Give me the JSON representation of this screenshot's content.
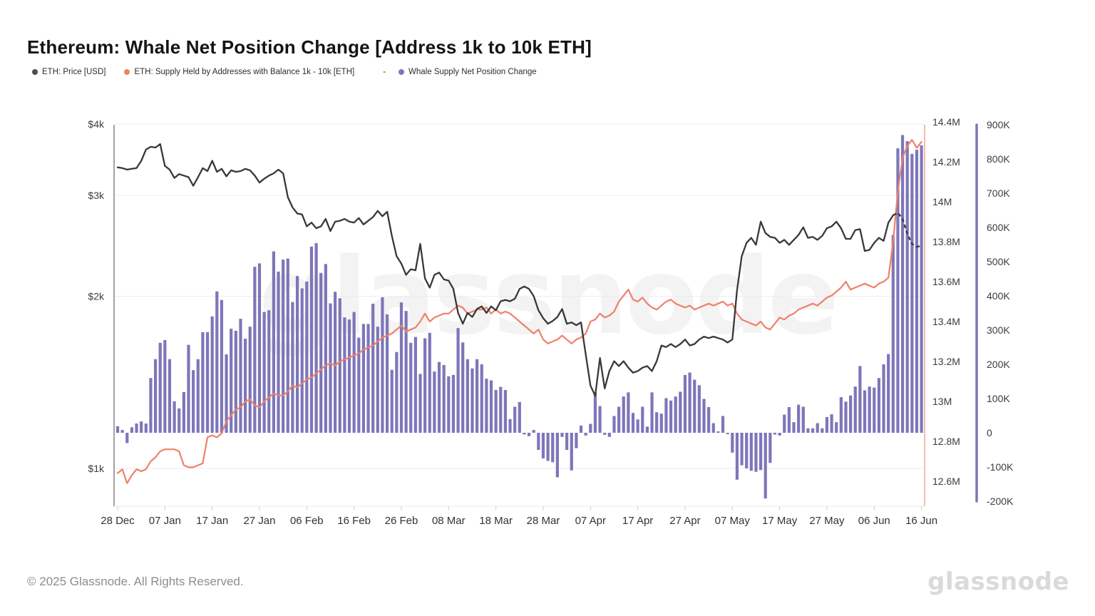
{
  "page": {
    "title": "Ethereum: Whale Net Position Change [Address 1k to 10k ETH]",
    "footer_copyright": "© 2025 Glassnode. All Rights Reserved.",
    "brand_watermark": "glassnode",
    "chart_watermark": "glassnode"
  },
  "legend": {
    "separator": "-",
    "items": [
      {
        "label": "ETH: Price [USD]",
        "color": "#4d4d4d"
      },
      {
        "label": "ETH: Supply Held by Addresses with Balance 1k - 10k [ETH]",
        "color": "#f08165"
      },
      {
        "label": "Whale Supply Net Position Change",
        "color": "#7d76b9"
      }
    ]
  },
  "chart_data": {
    "type": "combo",
    "title": "Ethereum: Whale Net Position Change [Address 1k to 10k ETH]",
    "x_start": "28 Dec",
    "x_end": "16 Jun",
    "x_tick_labels": [
      "28 Dec",
      "07 Jan",
      "17 Jan",
      "27 Jan",
      "06 Feb",
      "16 Feb",
      "26 Feb",
      "08 Mar",
      "18 Mar",
      "28 Mar",
      "07 Apr",
      "17 Apr",
      "27 Apr",
      "07 May",
      "17 May",
      "27 May",
      "06 Jun",
      "16 Jun"
    ],
    "x_tick_every_days": 10,
    "grid": "horizontal-faint",
    "legend_position": "top-left",
    "axes": {
      "price": {
        "side": "left",
        "scale": "log",
        "tick_labels": [
          "$1k",
          "$2k",
          "$3k",
          "$4k"
        ],
        "tick_values": [
          1000,
          2000,
          3000,
          4000
        ]
      },
      "supply": {
        "side": "right",
        "scale": "linear",
        "unit": "M",
        "tick_labels": [
          "12.6M",
          "12.8M",
          "13M",
          "13.2M",
          "13.4M",
          "13.6M",
          "13.8M",
          "14M",
          "14.2M",
          "14.4M"
        ],
        "tick_values": [
          12.6,
          12.8,
          13.0,
          13.2,
          13.4,
          13.6,
          13.8,
          14.0,
          14.2,
          14.4
        ]
      },
      "npc": {
        "side": "far-right",
        "scale": "linear",
        "unit": "K",
        "tick_labels": [
          "-200K",
          "-100K",
          "0",
          "100K",
          "200K",
          "300K",
          "400K",
          "500K",
          "600K",
          "700K",
          "800K",
          "900K"
        ],
        "tick_values": [
          -200,
          -100,
          0,
          100,
          200,
          300,
          400,
          500,
          600,
          700,
          800,
          900
        ]
      }
    },
    "series": [
      {
        "name": "ETH: Price [USD]",
        "type": "line",
        "axis": "price",
        "color": "#383838",
        "dashed_from_index": 164,
        "values": [
          3360,
          3350,
          3330,
          3340,
          3350,
          3450,
          3610,
          3650,
          3640,
          3690,
          3380,
          3330,
          3220,
          3270,
          3250,
          3230,
          3120,
          3230,
          3350,
          3310,
          3450,
          3300,
          3340,
          3240,
          3320,
          3300,
          3310,
          3340,
          3320,
          3250,
          3160,
          3210,
          3250,
          3280,
          3330,
          3280,
          2980,
          2860,
          2790,
          2780,
          2650,
          2690,
          2630,
          2650,
          2730,
          2600,
          2700,
          2710,
          2730,
          2700,
          2690,
          2740,
          2670,
          2710,
          2750,
          2820,
          2760,
          2810,
          2550,
          2350,
          2280,
          2180,
          2230,
          2220,
          2470,
          2150,
          2070,
          2180,
          2200,
          2140,
          2130,
          2060,
          1870,
          1790,
          1870,
          1840,
          1900,
          1920,
          1870,
          1920,
          1890,
          1960,
          1970,
          1960,
          1980,
          2060,
          2080,
          2060,
          2000,
          1890,
          1830,
          1790,
          1810,
          1840,
          1900,
          1790,
          1800,
          1780,
          1800,
          1580,
          1395,
          1340,
          1560,
          1380,
          1480,
          1540,
          1510,
          1540,
          1500,
          1470,
          1480,
          1500,
          1510,
          1480,
          1540,
          1640,
          1630,
          1650,
          1630,
          1650,
          1680,
          1640,
          1650,
          1680,
          1700,
          1690,
          1700,
          1690,
          1680,
          1660,
          1680,
          2050,
          2350,
          2480,
          2530,
          2460,
          2700,
          2580,
          2540,
          2530,
          2480,
          2510,
          2460,
          2510,
          2560,
          2640,
          2530,
          2540,
          2510,
          2550,
          2630,
          2650,
          2700,
          2630,
          2520,
          2520,
          2610,
          2620,
          2400,
          2410,
          2480,
          2530,
          2500,
          2690,
          2770,
          2800,
          2730,
          2570,
          2470,
          2440,
          2450
        ]
      },
      {
        "name": "ETH: Supply Held by Addresses with Balance 1k - 10k [ETH]",
        "type": "line",
        "axis": "supply",
        "color": "#ef8168",
        "values": [
          12.64,
          12.66,
          12.59,
          12.63,
          12.66,
          12.65,
          12.66,
          12.7,
          12.72,
          12.75,
          12.76,
          12.76,
          12.76,
          12.75,
          12.68,
          12.67,
          12.67,
          12.68,
          12.69,
          12.82,
          12.83,
          12.82,
          12.84,
          12.9,
          12.93,
          12.96,
          12.97,
          13.0,
          13.01,
          12.98,
          12.97,
          13.0,
          13.02,
          13.04,
          13.03,
          13.03,
          13.05,
          13.08,
          13.07,
          13.09,
          13.11,
          13.12,
          13.14,
          13.16,
          13.18,
          13.19,
          13.18,
          13.2,
          13.21,
          13.22,
          13.23,
          13.24,
          13.26,
          13.27,
          13.28,
          13.3,
          13.32,
          13.33,
          13.34,
          13.36,
          13.38,
          13.35,
          13.36,
          13.37,
          13.4,
          13.44,
          13.4,
          13.42,
          13.43,
          13.44,
          13.44,
          13.46,
          13.48,
          13.47,
          13.44,
          13.45,
          13.46,
          13.46,
          13.47,
          13.44,
          13.46,
          13.44,
          13.45,
          13.44,
          13.42,
          13.4,
          13.38,
          13.36,
          13.34,
          13.36,
          13.31,
          13.29,
          13.3,
          13.31,
          13.33,
          13.31,
          13.29,
          13.31,
          13.32,
          13.34,
          13.4,
          13.41,
          13.44,
          13.42,
          13.43,
          13.45,
          13.5,
          13.53,
          13.56,
          13.51,
          13.5,
          13.52,
          13.49,
          13.47,
          13.46,
          13.48,
          13.5,
          13.51,
          13.49,
          13.48,
          13.47,
          13.48,
          13.46,
          13.47,
          13.48,
          13.49,
          13.48,
          13.49,
          13.5,
          13.48,
          13.49,
          13.44,
          13.41,
          13.4,
          13.39,
          13.38,
          13.4,
          13.37,
          13.36,
          13.39,
          13.42,
          13.41,
          13.43,
          13.44,
          13.46,
          13.47,
          13.48,
          13.49,
          13.48,
          13.5,
          13.52,
          13.53,
          13.55,
          13.57,
          13.6,
          13.56,
          13.57,
          13.58,
          13.59,
          13.58,
          13.57,
          13.59,
          13.6,
          13.62,
          13.8,
          14.05,
          14.22,
          14.28,
          14.31,
          14.27,
          14.3
        ]
      },
      {
        "name": "Whale Supply Net Position Change",
        "type": "bar",
        "axis": "npc",
        "color": "#7d76b9",
        "values": [
          19,
          8,
          -30,
          16,
          27,
          33,
          27,
          160,
          215,
          263,
          271,
          215,
          92,
          71,
          119,
          257,
          183,
          215,
          294,
          294,
          340,
          413,
          388,
          229,
          304,
          298,
          333,
          275,
          310,
          485,
          495,
          353,
          358,
          530,
          471,
          506,
          509,
          382,
          458,
          422,
          442,
          544,
          554,
          467,
          493,
          378,
          412,
          393,
          337,
          331,
          353,
          278,
          318,
          318,
          377,
          310,
          396,
          346,
          184,
          236,
          381,
          356,
          263,
          280,
          172,
          276,
          292,
          179,
          207,
          198,
          165,
          169,
          306,
          264,
          215,
          188,
          215,
          200,
          158,
          153,
          125,
          134,
          125,
          40,
          76,
          90,
          -5,
          -10,
          8,
          -50,
          -75,
          -82,
          -86,
          -130,
          -12,
          -50,
          -110,
          -45,
          21,
          -8,
          26,
          118,
          78,
          -6,
          -12,
          49,
          76,
          106,
          118,
          58,
          39,
          76,
          18,
          118,
          60,
          56,
          101,
          94,
          106,
          120,
          169,
          176,
          155,
          139,
          99,
          75,
          28,
          4,
          49,
          -4,
          -58,
          -137,
          -95,
          -104,
          -111,
          -114,
          -109,
          -192,
          -88,
          -5,
          -8,
          53,
          75,
          31,
          82,
          76,
          13,
          13,
          28,
          13,
          46,
          54,
          31,
          104,
          91,
          109,
          135,
          195,
          124,
          135,
          132,
          160,
          200,
          230,
          578,
          831,
          870,
          852,
          815,
          827,
          840
        ]
      }
    ]
  }
}
